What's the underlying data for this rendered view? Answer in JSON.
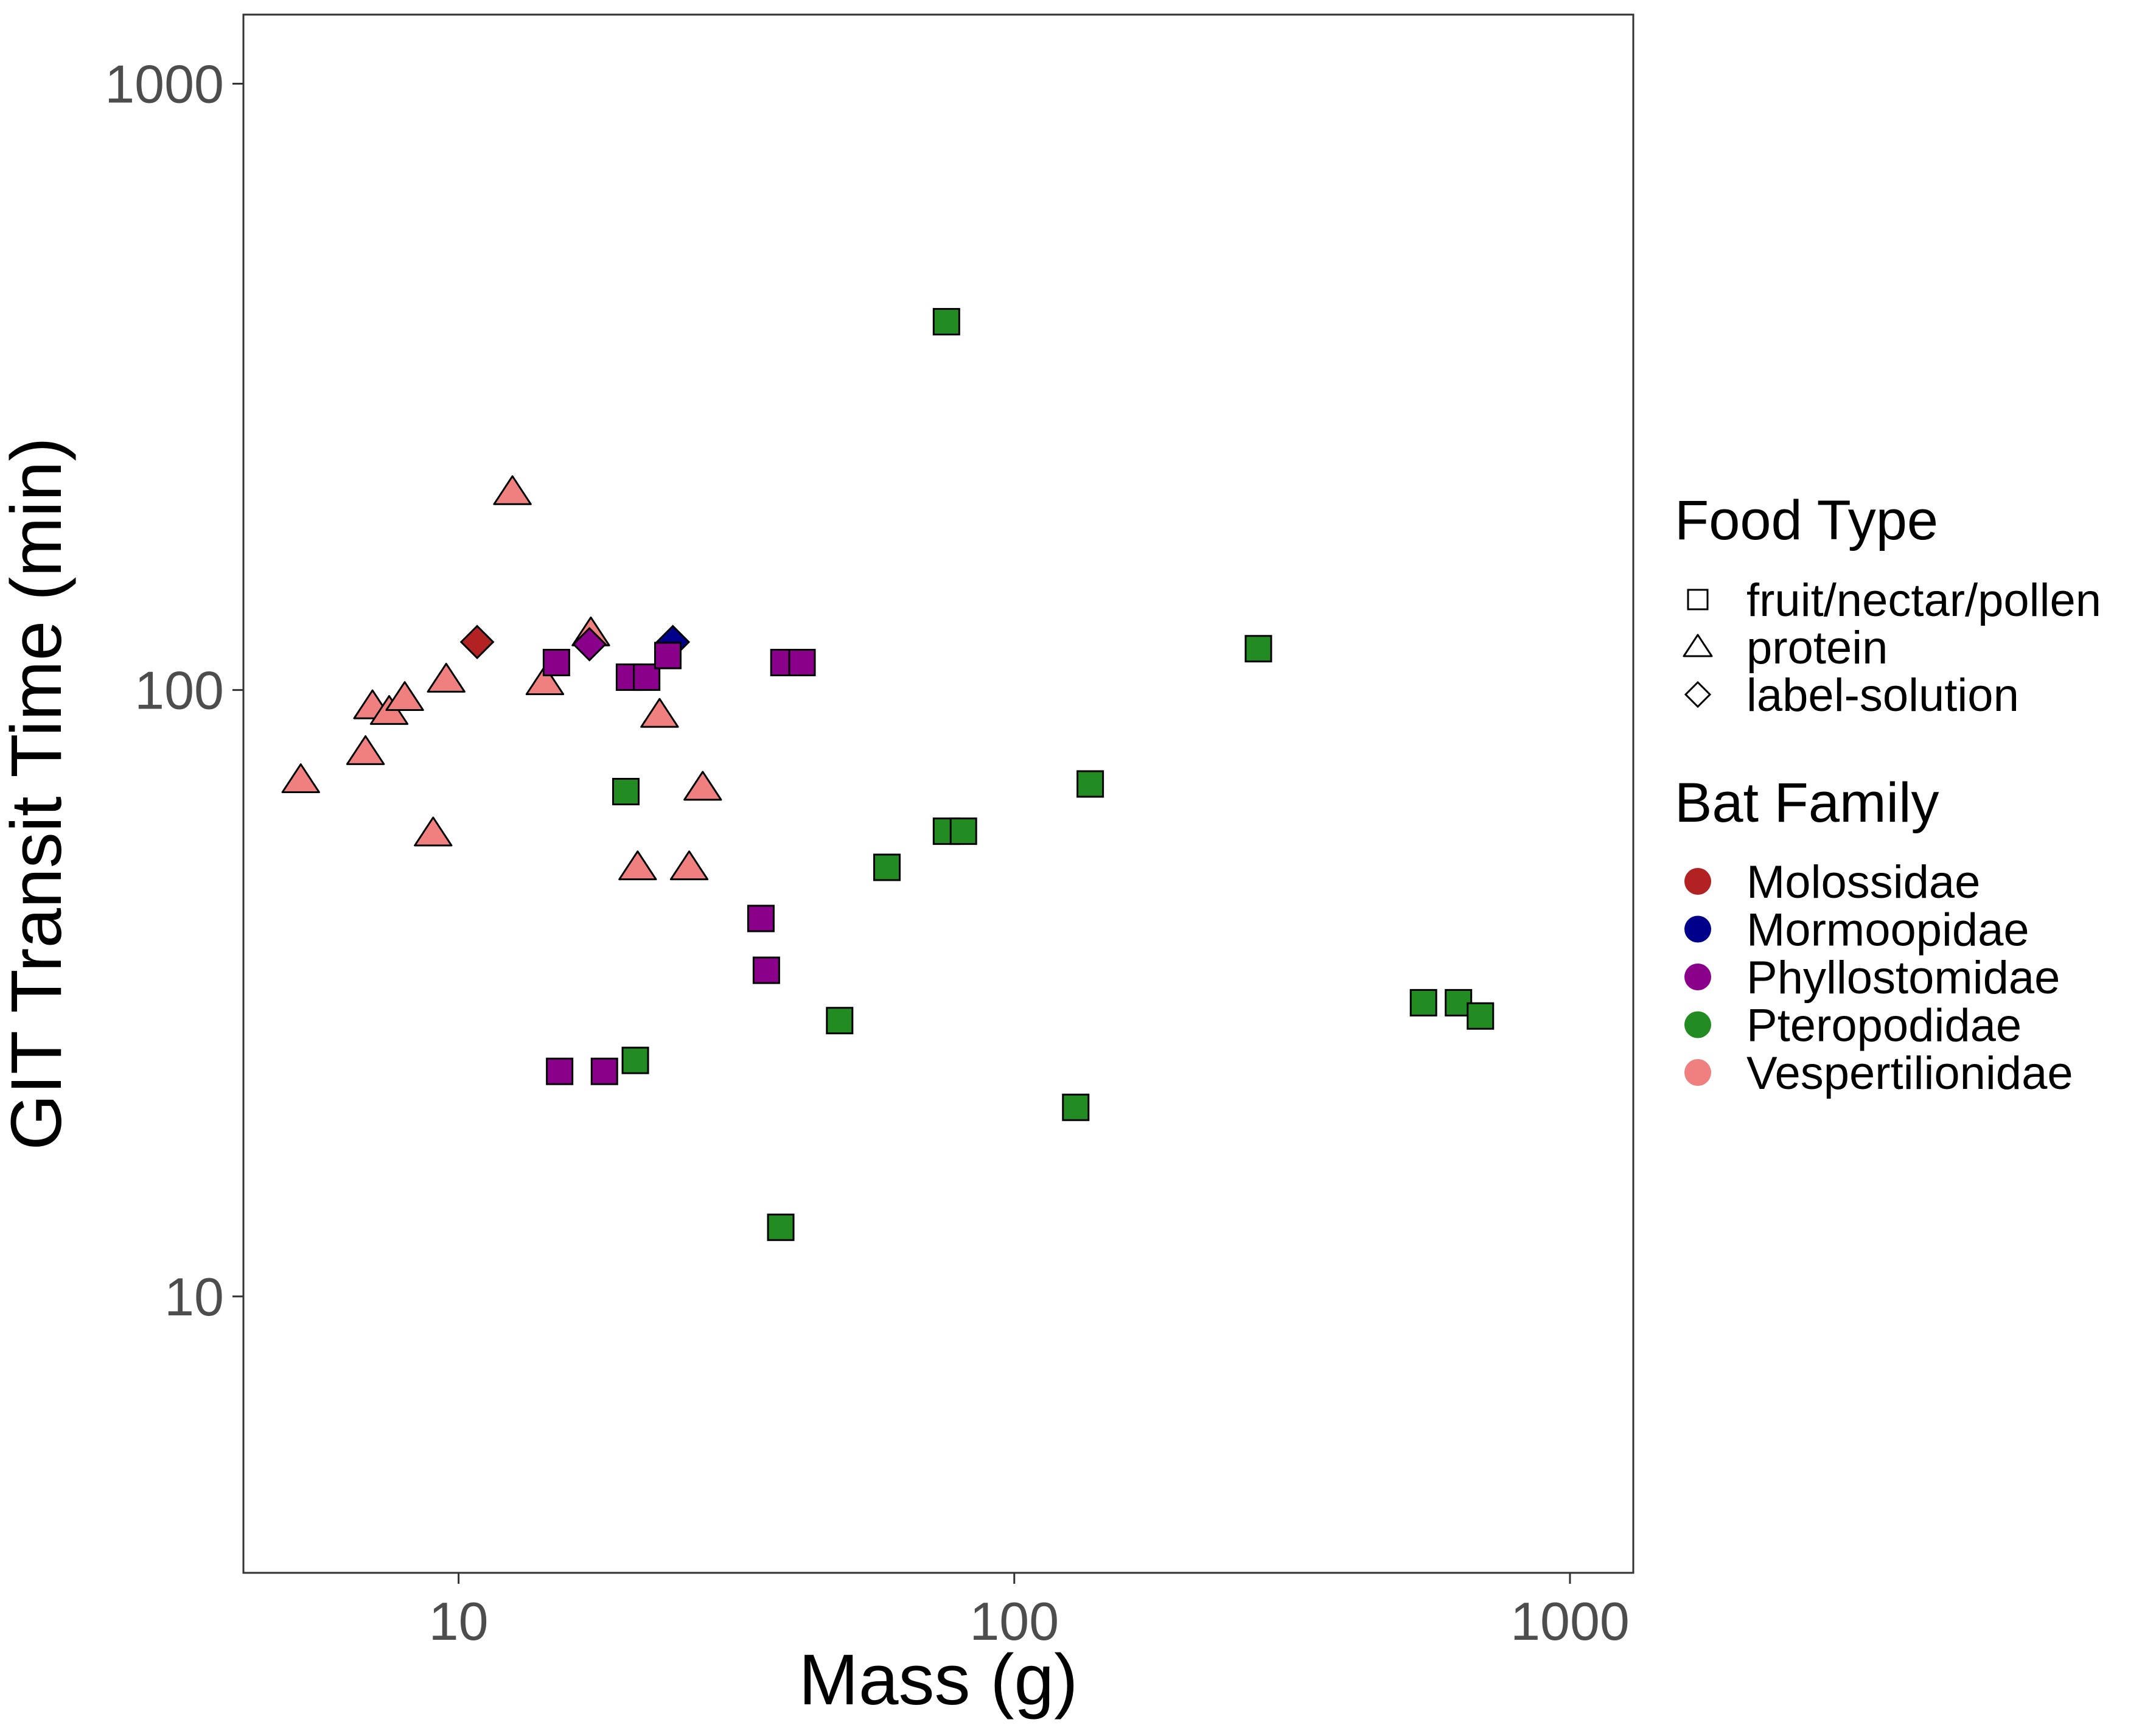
{
  "chart_data": {
    "type": "scatter",
    "xlabel": "Mass (g)",
    "ylabel": "GIT Transit Time (min)",
    "x_scale": "log10",
    "y_scale": "log10",
    "xlim": [
      4.1,
      1300
    ],
    "ylim": [
      3.5,
      1300
    ],
    "x_ticks": [
      {
        "value": 10,
        "label": "10"
      },
      {
        "value": 100,
        "label": "100"
      },
      {
        "value": 1000,
        "label": "1000"
      }
    ],
    "y_ticks": [
      {
        "value": 10,
        "label": "10"
      },
      {
        "value": 100,
        "label": "100"
      },
      {
        "value": 1000,
        "label": "1000"
      }
    ],
    "grid": false,
    "legend_position": "right",
    "legends": {
      "shape": {
        "title": "Food Type",
        "entries": [
          {
            "key": "fruit",
            "label": "fruit/nectar/pollen",
            "shape": "square"
          },
          {
            "key": "protein",
            "label": "protein",
            "shape": "triangle"
          },
          {
            "key": "label",
            "label": "label-solution",
            "shape": "diamond"
          }
        ]
      },
      "color": {
        "title": "Bat Family",
        "entries": [
          {
            "key": "Molossidae",
            "label": "Molossidae",
            "color": "#b22222"
          },
          {
            "key": "Mormoopidae",
            "label": "Mormoopidae",
            "color": "#00008b"
          },
          {
            "key": "Phyllostomidae",
            "label": "Phyllostomidae",
            "color": "#8b008b"
          },
          {
            "key": "Pteropodidae",
            "label": "Pteropodidae",
            "color": "#228b22"
          },
          {
            "key": "Vespertilionidae",
            "label": "Vespertilionidae",
            "color": "#f08080"
          }
        ]
      }
    },
    "points": [
      {
        "x": 5.2,
        "y": 71,
        "food": "protein",
        "family": "Vespertilionidae"
      },
      {
        "x": 6.8,
        "y": 79,
        "food": "protein",
        "family": "Vespertilionidae"
      },
      {
        "x": 7.0,
        "y": 94,
        "food": "protein",
        "family": "Vespertilionidae"
      },
      {
        "x": 7.5,
        "y": 92,
        "food": "protein",
        "family": "Vespertilionidae"
      },
      {
        "x": 8.0,
        "y": 97,
        "food": "protein",
        "family": "Vespertilionidae"
      },
      {
        "x": 9.0,
        "y": 58,
        "food": "protein",
        "family": "Vespertilionidae"
      },
      {
        "x": 9.5,
        "y": 104,
        "food": "protein",
        "family": "Vespertilionidae"
      },
      {
        "x": 12.5,
        "y": 212,
        "food": "protein",
        "family": "Vespertilionidae"
      },
      {
        "x": 14.3,
        "y": 103,
        "food": "protein",
        "family": "Vespertilionidae"
      },
      {
        "x": 17.3,
        "y": 124,
        "food": "protein",
        "family": "Vespertilionidae"
      },
      {
        "x": 21.0,
        "y": 51,
        "food": "protein",
        "family": "Vespertilionidae"
      },
      {
        "x": 23.0,
        "y": 91,
        "food": "protein",
        "family": "Vespertilionidae"
      },
      {
        "x": 26.0,
        "y": 51,
        "food": "protein",
        "family": "Vespertilionidae"
      },
      {
        "x": 27.5,
        "y": 69,
        "food": "protein",
        "family": "Vespertilionidae"
      },
      {
        "x": 10.8,
        "y": 120,
        "food": "label",
        "family": "Molossidae"
      },
      {
        "x": 17.2,
        "y": 119,
        "food": "label",
        "family": "Phyllostomidae"
      },
      {
        "x": 24.3,
        "y": 120,
        "food": "label",
        "family": "Mormoopidae"
      },
      {
        "x": 15.0,
        "y": 111,
        "food": "fruit",
        "family": "Phyllostomidae"
      },
      {
        "x": 20.3,
        "y": 105,
        "food": "fruit",
        "family": "Phyllostomidae"
      },
      {
        "x": 21.8,
        "y": 105,
        "food": "fruit",
        "family": "Phyllostomidae"
      },
      {
        "x": 23.8,
        "y": 114,
        "food": "fruit",
        "family": "Phyllostomidae"
      },
      {
        "x": 38.5,
        "y": 111,
        "food": "fruit",
        "family": "Phyllostomidae"
      },
      {
        "x": 41.5,
        "y": 111,
        "food": "fruit",
        "family": "Phyllostomidae"
      },
      {
        "x": 35.0,
        "y": 42,
        "food": "fruit",
        "family": "Phyllostomidae"
      },
      {
        "x": 35.8,
        "y": 34.5,
        "food": "fruit",
        "family": "Phyllostomidae"
      },
      {
        "x": 15.2,
        "y": 23.5,
        "food": "fruit",
        "family": "Phyllostomidae"
      },
      {
        "x": 18.3,
        "y": 23.5,
        "food": "fruit",
        "family": "Phyllostomidae"
      },
      {
        "x": 20.0,
        "y": 68,
        "food": "fruit",
        "family": "Pteropodidae"
      },
      {
        "x": 20.8,
        "y": 24.5,
        "food": "fruit",
        "family": "Pteropodidae"
      },
      {
        "x": 38.0,
        "y": 13,
        "food": "fruit",
        "family": "Pteropodidae"
      },
      {
        "x": 48.5,
        "y": 28.5,
        "food": "fruit",
        "family": "Pteropodidae"
      },
      {
        "x": 59.0,
        "y": 51,
        "food": "fruit",
        "family": "Pteropodidae"
      },
      {
        "x": 75.5,
        "y": 405,
        "food": "fruit",
        "family": "Pteropodidae"
      },
      {
        "x": 75.5,
        "y": 58.5,
        "food": "fruit",
        "family": "Pteropodidae"
      },
      {
        "x": 81.0,
        "y": 58.5,
        "food": "fruit",
        "family": "Pteropodidae"
      },
      {
        "x": 129.0,
        "y": 20.5,
        "food": "fruit",
        "family": "Pteropodidae"
      },
      {
        "x": 137.0,
        "y": 70,
        "food": "fruit",
        "family": "Pteropodidae"
      },
      {
        "x": 275.0,
        "y": 117,
        "food": "fruit",
        "family": "Pteropodidae"
      },
      {
        "x": 545.0,
        "y": 30.5,
        "food": "fruit",
        "family": "Pteropodidae"
      },
      {
        "x": 630.0,
        "y": 30.5,
        "food": "fruit",
        "family": "Pteropodidae"
      },
      {
        "x": 690.0,
        "y": 29,
        "food": "fruit",
        "family": "Pteropodidae"
      }
    ]
  }
}
